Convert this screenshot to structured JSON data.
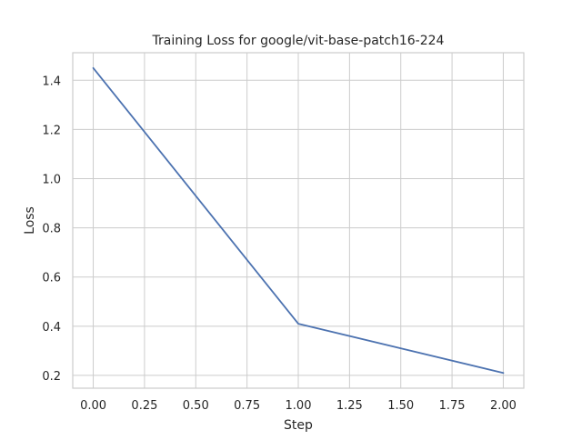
{
  "chart_data": {
    "type": "line",
    "title": "Training Loss for google/vit-base-patch16-224",
    "xlabel": "Step",
    "ylabel": "Loss",
    "xlim": [
      -0.1,
      2.1
    ],
    "ylim": [
      0.148,
      1.512
    ],
    "grid": true,
    "x_ticks": [
      0.0,
      0.25,
      0.5,
      0.75,
      1.0,
      1.25,
      1.5,
      1.75,
      2.0
    ],
    "x_tick_labels": [
      "0.00",
      "0.25",
      "0.50",
      "0.75",
      "1.00",
      "1.25",
      "1.50",
      "1.75",
      "2.00"
    ],
    "y_ticks": [
      0.2,
      0.4,
      0.6,
      0.8,
      1.0,
      1.2,
      1.4
    ],
    "y_tick_labels": [
      "0.2",
      "0.4",
      "0.6",
      "0.8",
      "1.0",
      "1.2",
      "1.4"
    ],
    "series": [
      {
        "x": [
          0,
          1,
          2
        ],
        "values": [
          1.45,
          0.41,
          0.21
        ],
        "color": "#4c72b0"
      }
    ]
  }
}
